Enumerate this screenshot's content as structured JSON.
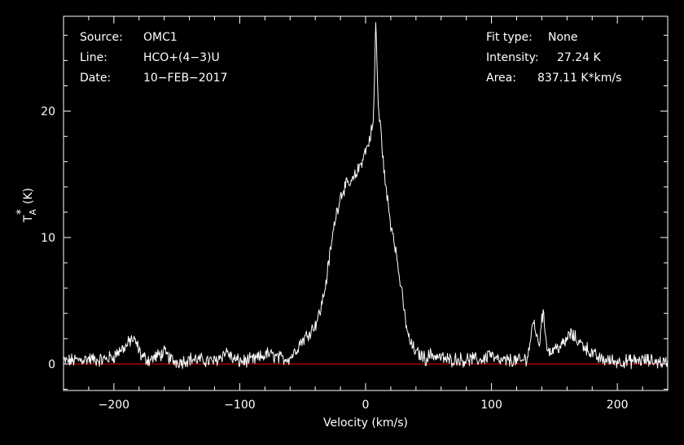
{
  "header": {
    "source_label": "Source:",
    "source_value": "OMC1",
    "line_label": "Line:",
    "line_value": "HCO+(4−3)U",
    "date_label": "Date:",
    "date_value": "10−FEB−2017",
    "fit_label": "Fit type:",
    "fit_value": "None",
    "intensity_label": "Intensity:",
    "intensity_value": "27.24 K",
    "area_label": "Area:",
    "area_value": "837.11 K*km/s"
  },
  "colors": {
    "background": "#000000",
    "foreground": "#ffffff",
    "baseline": "#c00000"
  },
  "chart_data": {
    "type": "line",
    "title": "",
    "xlabel": "Velocity (km/s)",
    "ylabel_main": "T",
    "ylabel_sup": "*",
    "ylabel_sub": "A",
    "ylabel_unit": "(K)",
    "xlim": [
      -240,
      240
    ],
    "ylim": [
      -2.1,
      27.5
    ],
    "x_ticks": [
      -200,
      -100,
      0,
      100,
      200
    ],
    "x_tick_labels": [
      "−200",
      "−100",
      "0",
      "100",
      "200"
    ],
    "y_ticks": [
      0,
      10,
      20
    ],
    "y_tick_labels": [
      "0",
      "10",
      "20"
    ],
    "baseline_y": 0,
    "grid": false,
    "series": [
      {
        "x": [
          -240,
          -230,
          -220,
          -210,
          -200,
          -195,
          -190,
          -186,
          -182,
          -178,
          -172,
          -166,
          -160,
          -156,
          -152,
          -146,
          -140,
          -130,
          -120,
          -114,
          -110,
          -106,
          -100,
          -90,
          -84,
          -78,
          -72,
          -66,
          -60,
          -56,
          -52,
          -48,
          -44,
          -40,
          -36,
          -32,
          -28,
          -24,
          -20,
          -16,
          -12,
          -8,
          -4,
          0,
          2,
          4,
          6,
          7,
          8,
          9,
          10,
          11,
          12,
          14,
          16,
          18,
          20,
          22,
          24,
          26,
          28,
          30,
          32,
          34,
          36,
          40,
          44,
          48,
          52,
          56,
          60,
          66,
          72,
          78,
          84,
          90,
          96,
          98,
          102,
          108,
          116,
          124,
          128,
          130,
          132,
          134,
          136,
          138,
          140,
          141,
          142,
          144,
          146,
          150,
          154,
          158,
          162,
          166,
          170,
          174,
          180,
          186,
          192,
          200,
          210,
          220,
          230,
          240
        ],
        "y": [
          0.2,
          0.3,
          0.4,
          0.3,
          0.6,
          1.1,
          1.4,
          2.0,
          1.6,
          0.6,
          0.3,
          0.6,
          0.9,
          0.5,
          0.2,
          0.2,
          0.4,
          0.3,
          0.2,
          0.7,
          1.0,
          0.4,
          0.2,
          0.3,
          0.5,
          0.8,
          0.6,
          0.4,
          0.5,
          1.0,
          1.7,
          2.1,
          2.6,
          3.1,
          4.2,
          6.1,
          8.9,
          11.6,
          13.3,
          14.1,
          14.2,
          14.9,
          15.8,
          16.9,
          17.3,
          18.2,
          19.0,
          22.0,
          27.2,
          24.0,
          20.5,
          19.3,
          18.6,
          16.1,
          13.9,
          12.6,
          11.0,
          10.4,
          9.0,
          7.4,
          6.2,
          4.6,
          3.3,
          2.1,
          1.6,
          0.9,
          0.7,
          0.4,
          0.8,
          0.6,
          0.5,
          0.3,
          0.4,
          0.3,
          0.4,
          0.3,
          0.5,
          1.0,
          0.4,
          0.2,
          0.3,
          0.2,
          0.5,
          1.2,
          2.7,
          3.4,
          2.0,
          1.6,
          3.7,
          4.0,
          3.1,
          1.6,
          0.9,
          1.2,
          1.4,
          1.6,
          2.4,
          2.1,
          1.7,
          1.4,
          0.8,
          0.4,
          0.3,
          0.2,
          0.2,
          0.3,
          0.2,
          0.1
        ]
      }
    ]
  }
}
